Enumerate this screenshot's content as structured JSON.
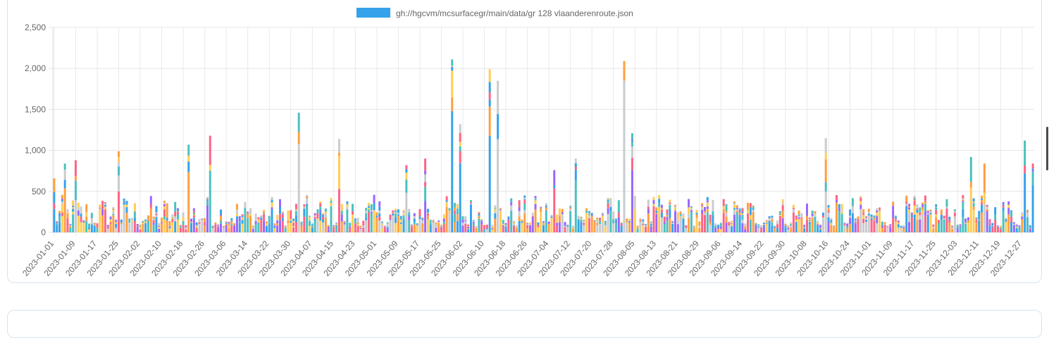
{
  "chart_data": {
    "type": "bar",
    "stacked": true,
    "legend": {
      "position": "top",
      "label": "gh://hgcvm/mcsurfacegr/main/data/gr 128 vlaanderenroute.json",
      "color": "#36a2eb"
    },
    "ylim": [
      0,
      2500
    ],
    "yticks": [
      "0",
      "500",
      "1,000",
      "1,500",
      "2,000",
      "2,500"
    ],
    "ytick_values": [
      0,
      500,
      1000,
      1500,
      2000,
      2500
    ],
    "grid": true,
    "x_start": "2023-01-01",
    "x_end": "2023-12-31",
    "xtick_labels": [
      "2023-01-01",
      "2023-01-09",
      "2023-01-17",
      "2023-01-25",
      "2023-02-02",
      "2023-02-10",
      "2023-02-18",
      "2023-02-26",
      "2023-03-06",
      "2023-03-14",
      "2023-03-22",
      "2023-03-30",
      "2023-04-07",
      "2023-04-15",
      "2023-04-23",
      "2023-05-01",
      "2023-05-09",
      "2023-05-17",
      "2023-05-25",
      "2023-06-02",
      "2023-06-10",
      "2023-06-18",
      "2023-06-26",
      "2023-07-04",
      "2023-07-12",
      "2023-07-20",
      "2023-07-28",
      "2023-08-05",
      "2023-08-13",
      "2023-08-21",
      "2023-08-29",
      "2023-09-06",
      "2023-09-14",
      "2023-09-22",
      "2023-09-30",
      "2023-10-08",
      "2023-10-16",
      "2023-10-24",
      "2023-11-01",
      "2023-11-09",
      "2023-11-17",
      "2023-11-25",
      "2023-12-03",
      "2023-12-11",
      "2023-12-19",
      "2023-12-27"
    ],
    "palette": [
      "#36a2eb",
      "#ff6384",
      "#4bc0c0",
      "#ff9f40",
      "#9966ff",
      "#ffcd56",
      "#c9cbcf"
    ],
    "peaks": [
      {
        "date": "2023-01-01",
        "value": 660
      },
      {
        "date": "2023-01-05",
        "value": 840
      },
      {
        "date": "2023-01-09",
        "value": 880
      },
      {
        "date": "2023-01-25",
        "value": 990
      },
      {
        "date": "2023-02-20",
        "value": 1070
      },
      {
        "date": "2023-02-28",
        "value": 1180
      },
      {
        "date": "2023-04-02",
        "value": 1460
      },
      {
        "date": "2023-04-17",
        "value": 1140
      },
      {
        "date": "2023-05-12",
        "value": 820
      },
      {
        "date": "2023-05-19",
        "value": 900
      },
      {
        "date": "2023-05-29",
        "value": 2110
      },
      {
        "date": "2023-06-01",
        "value": 1320
      },
      {
        "date": "2023-06-12",
        "value": 1990
      },
      {
        "date": "2023-06-15",
        "value": 1850
      },
      {
        "date": "2023-07-06",
        "value": 760
      },
      {
        "date": "2023-07-14",
        "value": 900
      },
      {
        "date": "2023-08-01",
        "value": 2090
      },
      {
        "date": "2023-08-04",
        "value": 1210
      },
      {
        "date": "2023-10-15",
        "value": 1150
      },
      {
        "date": "2023-12-08",
        "value": 920
      },
      {
        "date": "2023-12-13",
        "value": 840
      },
      {
        "date": "2023-12-28",
        "value": 1120
      },
      {
        "date": "2023-12-31",
        "value": 840
      }
    ],
    "baseline_range": [
      80,
      460
    ]
  }
}
